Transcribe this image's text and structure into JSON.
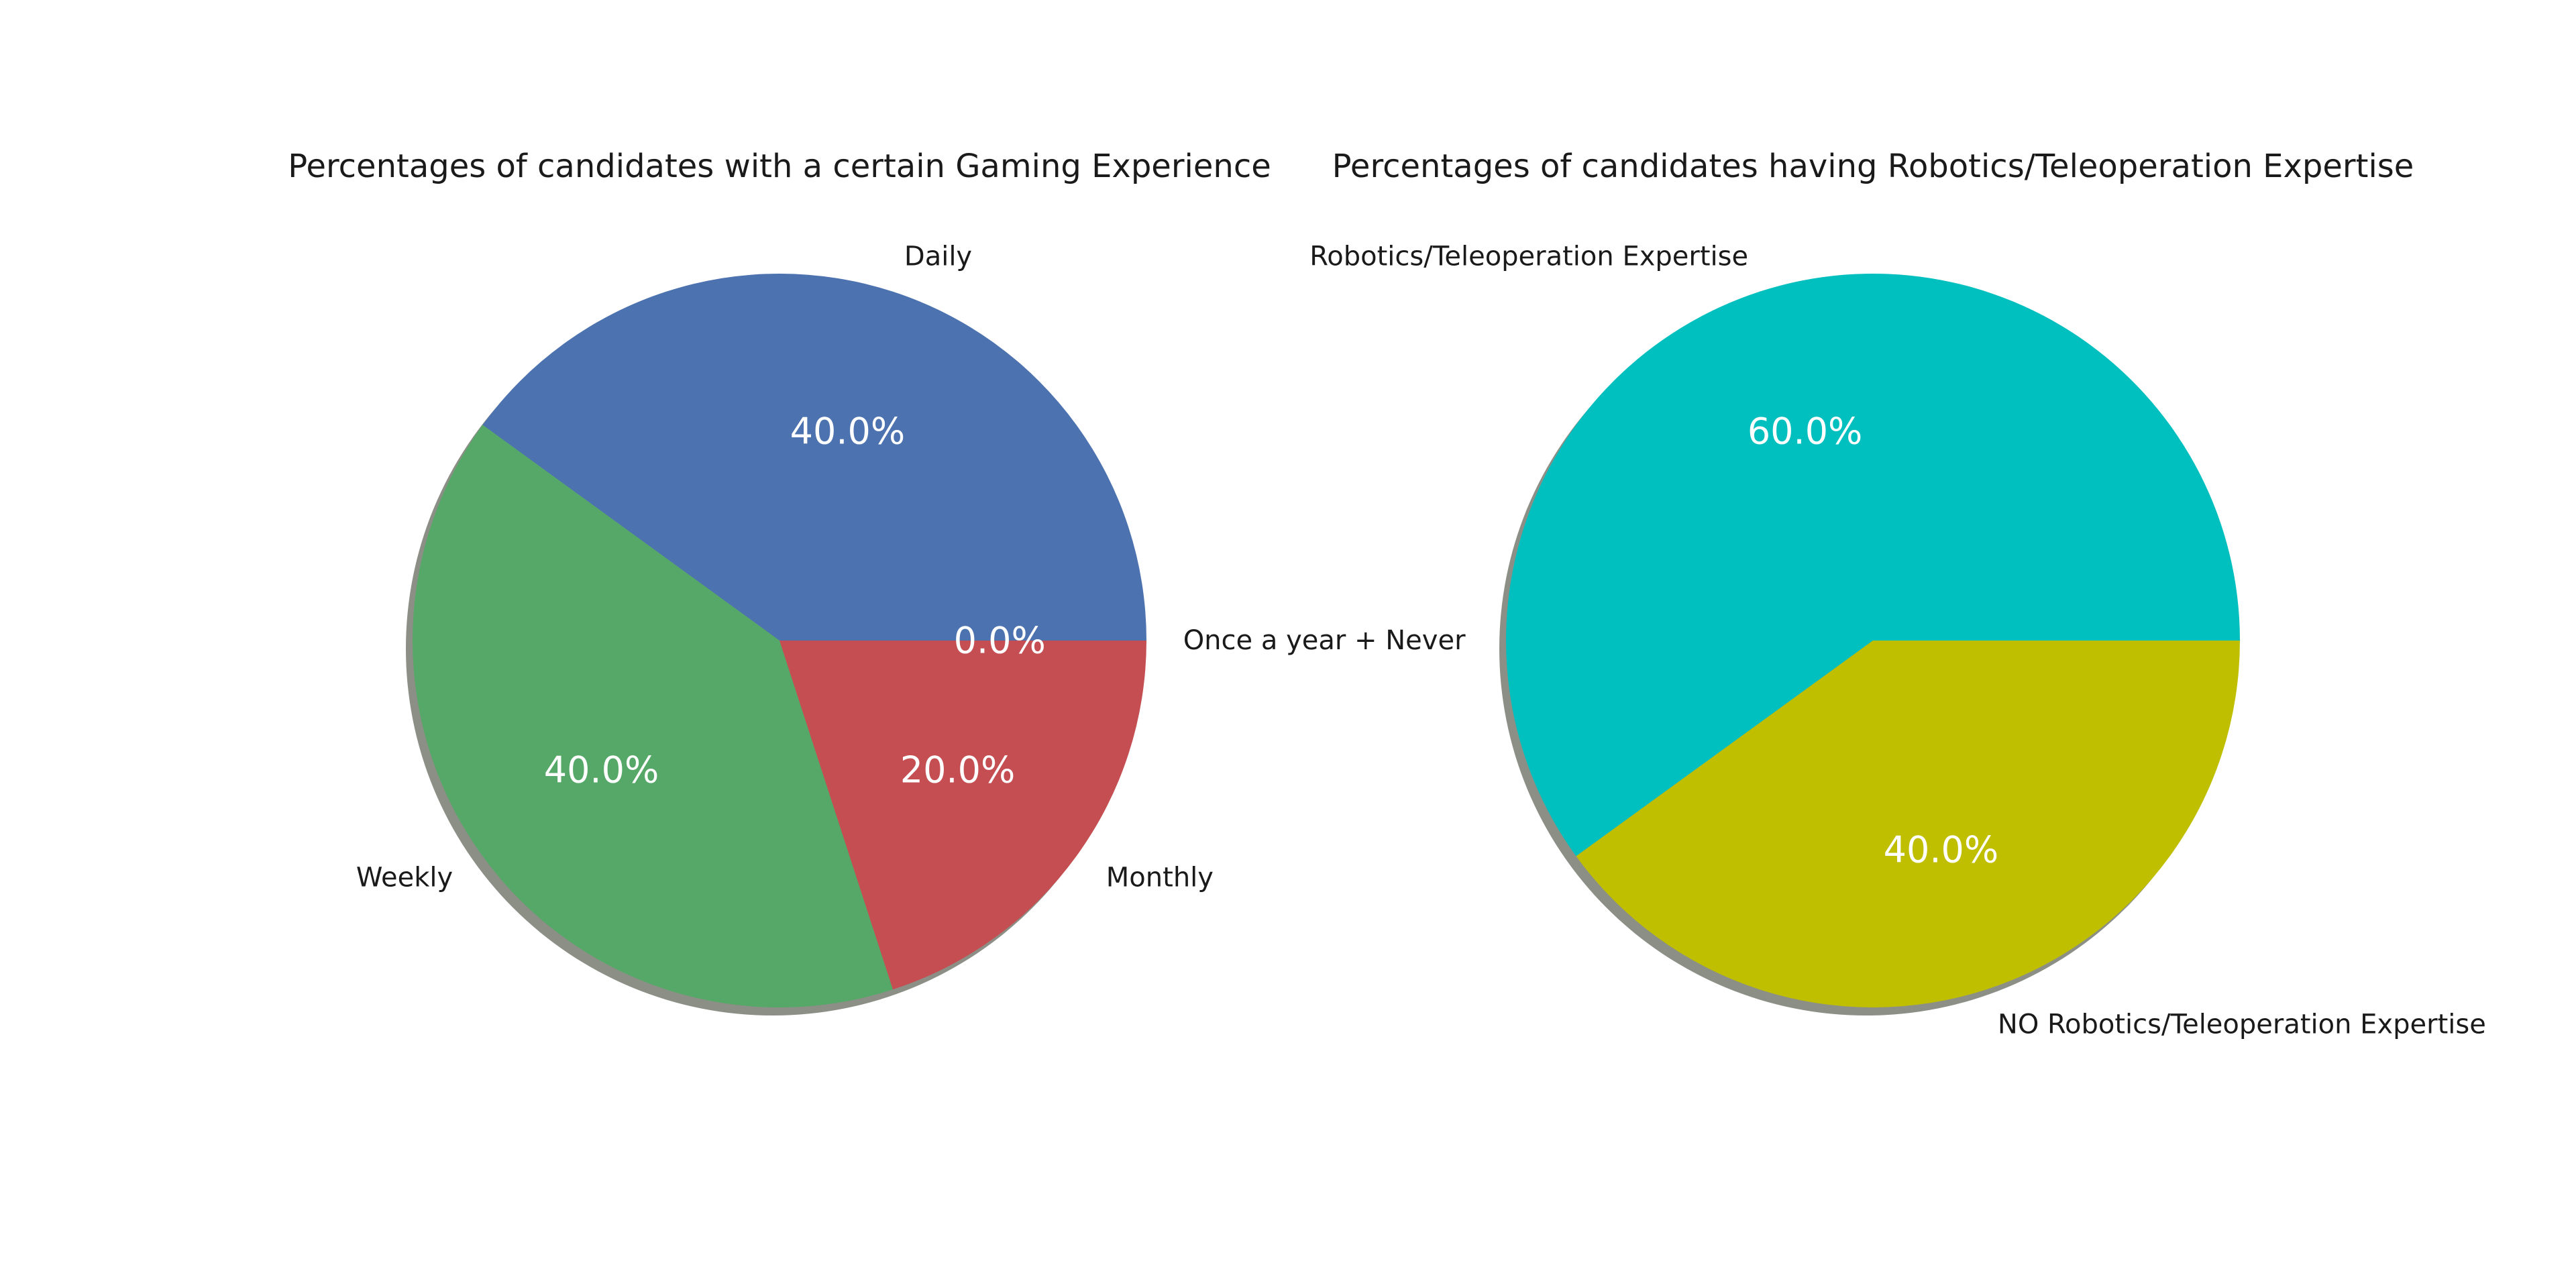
{
  "chart_data": [
    {
      "type": "pie",
      "title": "Percentages of candidates with a certain Gaming Experience",
      "shadow": true,
      "slices": [
        {
          "label": "Daily",
          "value": 40.0,
          "pct_label": "40.0%",
          "color": "#4c72b0"
        },
        {
          "label": "Weekly",
          "value": 40.0,
          "pct_label": "40.0%",
          "color": "#55a868"
        },
        {
          "label": "Monthly",
          "value": 20.0,
          "pct_label": "20.0%",
          "color": "#c44e52"
        },
        {
          "label": "Once a year + Never",
          "value": 0.0,
          "pct_label": "0.0%",
          "color": "#8172b2"
        }
      ]
    },
    {
      "type": "pie",
      "title": "Percentages of candidates having Robotics/Teleoperation Expertise",
      "shadow": true,
      "slices": [
        {
          "label": "Robotics/Teleoperation Expertise",
          "value": 60.0,
          "pct_label": "60.0%",
          "color": "#00bfbf"
        },
        {
          "label": "NO Robotics/Teleoperation Expertise",
          "value": 40.0,
          "pct_label": "40.0%",
          "color": "#bfbf00"
        }
      ]
    }
  ]
}
